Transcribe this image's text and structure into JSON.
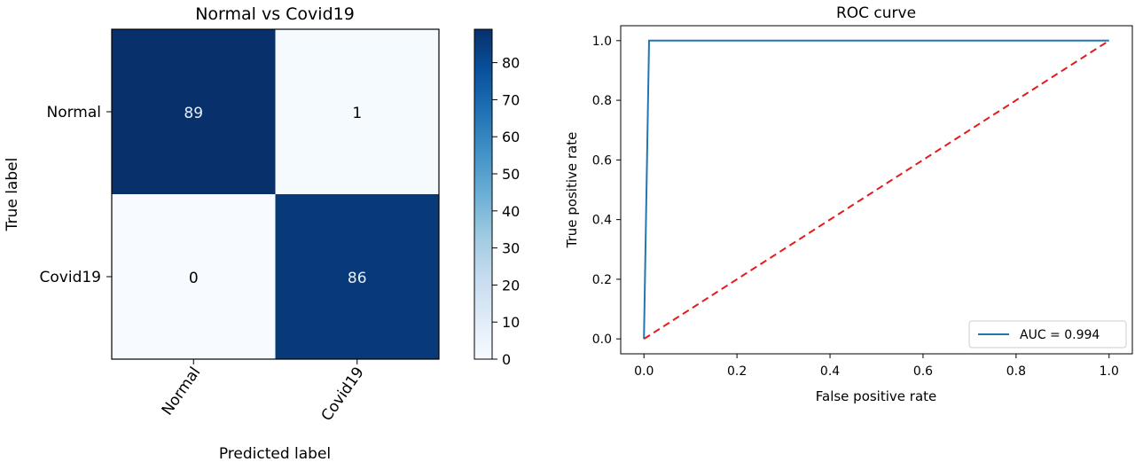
{
  "chart_data": [
    {
      "type": "heatmap",
      "title": "Normal vs Covid19",
      "xlabel": "Predicted label",
      "ylabel": "True label",
      "row_labels": [
        "Normal",
        "Covid19"
      ],
      "col_labels": [
        "Normal",
        "Covid19"
      ],
      "values": [
        [
          89,
          1
        ],
        [
          0,
          86
        ]
      ],
      "colorbar": {
        "min": 0,
        "max": 89,
        "ticks": [
          0,
          10,
          20,
          30,
          40,
          50,
          60,
          70,
          80
        ]
      },
      "colormap": "Blues"
    },
    {
      "type": "line",
      "title": "ROC curve",
      "xlabel": "False positive rate",
      "ylabel": "True positive rate",
      "xlim": [
        -0.05,
        1.05
      ],
      "ylim": [
        -0.05,
        1.05
      ],
      "xticks": [
        0.0,
        0.2,
        0.4,
        0.6,
        0.8,
        1.0
      ],
      "yticks": [
        0.0,
        0.2,
        0.4,
        0.6,
        0.8,
        1.0
      ],
      "tick_labels": [
        "0.0",
        "0.2",
        "0.4",
        "0.6",
        "0.8",
        "1.0"
      ],
      "legend_position": "lower-right",
      "series": [
        {
          "name": "AUC = 0.994",
          "x": [
            0.0,
            0.011,
            1.0
          ],
          "y": [
            0.0,
            1.0,
            1.0
          ],
          "color": "#1f77b4",
          "style": "solid"
        },
        {
          "x": [
            0.0,
            1.0
          ],
          "y": [
            0.0,
            1.0
          ],
          "color": "#e41a1c",
          "style": "dashed"
        }
      ]
    }
  ]
}
